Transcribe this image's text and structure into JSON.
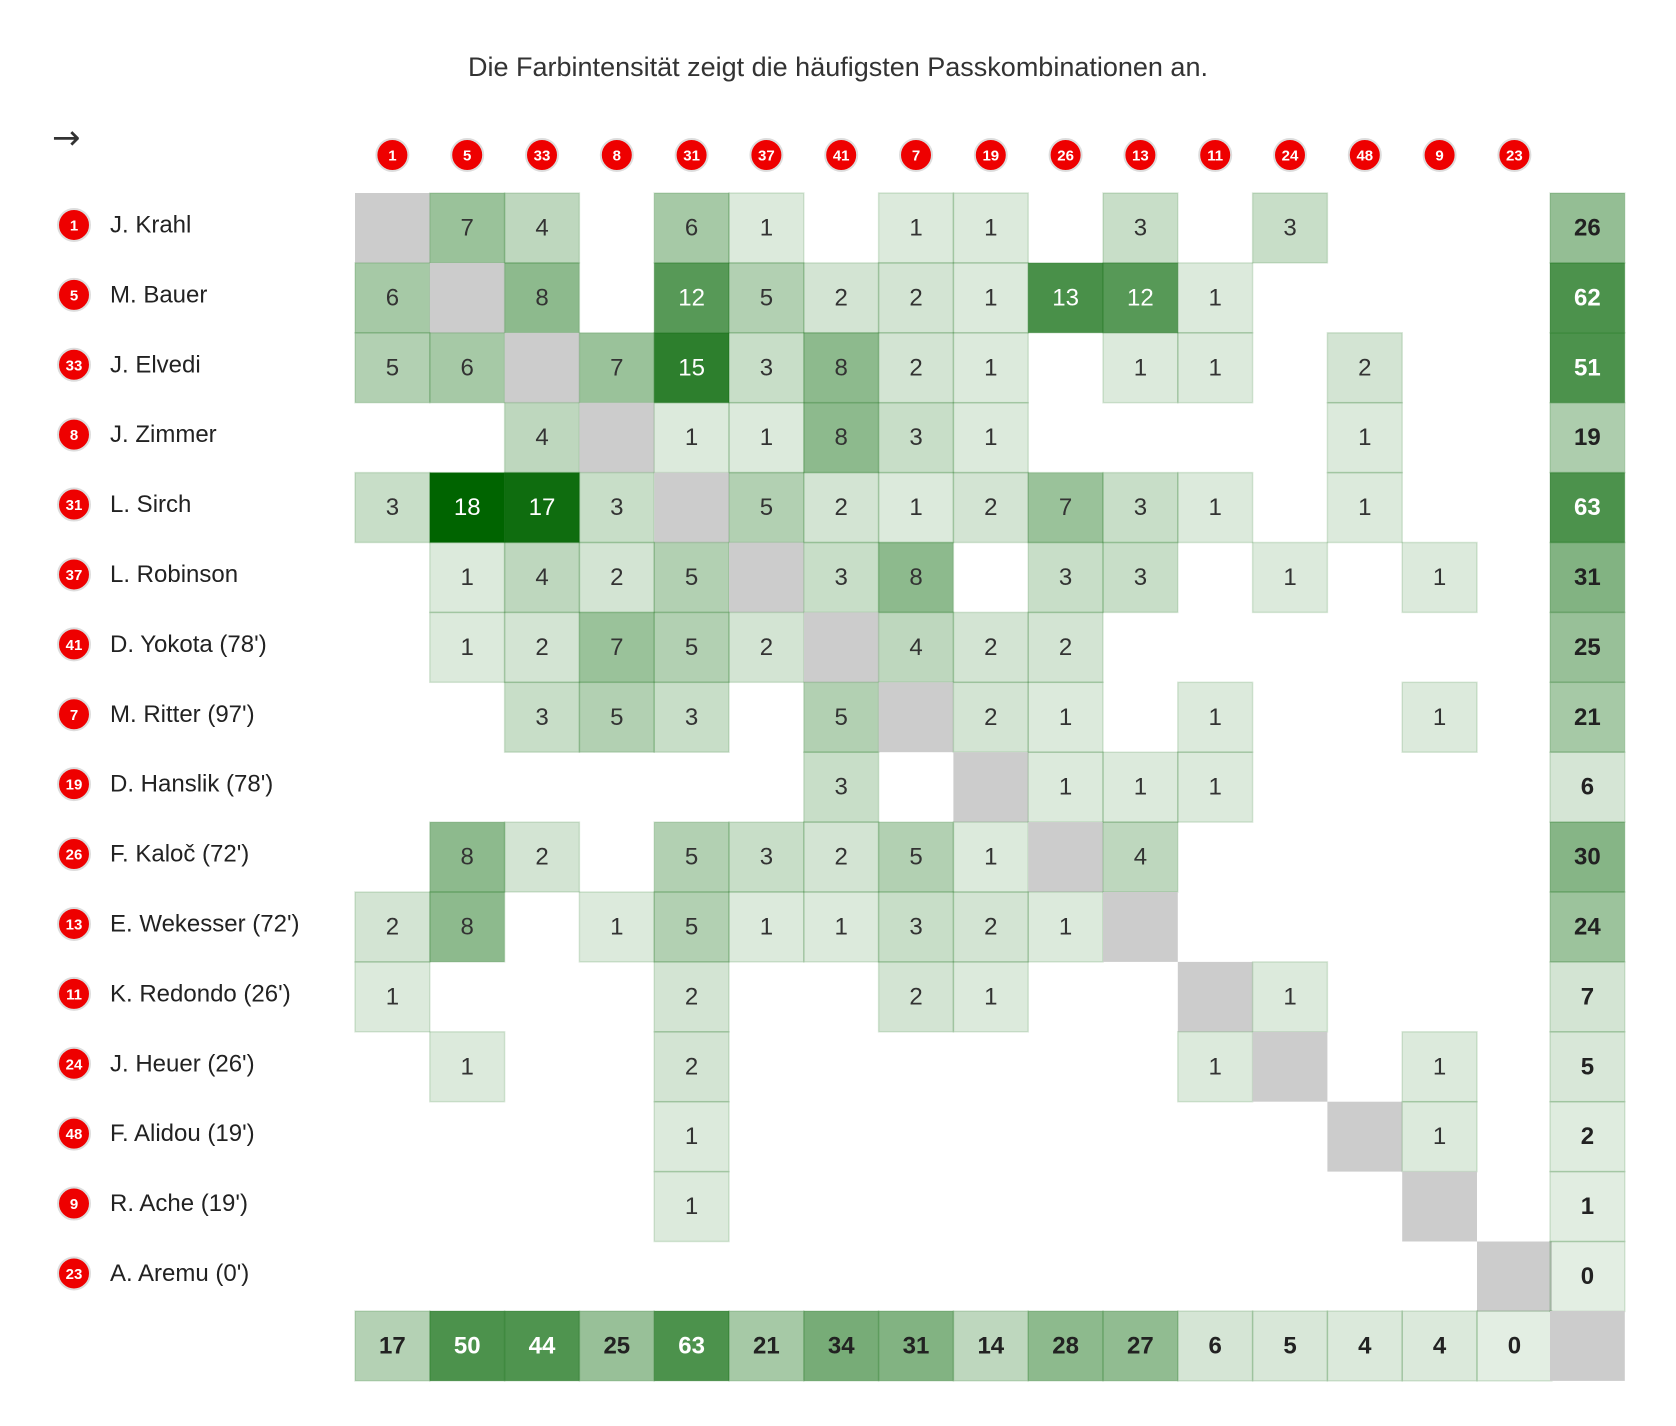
{
  "subtitle": "Die Farbintensität zeigt die häufigsten Passkombinationen an.",
  "direction_symbol": "→",
  "colors": {
    "base_green": "#006400",
    "diagonal": "#cccccc",
    "badge": "#ee0000",
    "badge_border": "#dddddd"
  },
  "chart_data": {
    "type": "heatmap",
    "title": "Die Farbintensität zeigt die häufigsten Passkombinationen an.",
    "col_numbers": [
      "1",
      "5",
      "33",
      "8",
      "31",
      "37",
      "41",
      "7",
      "19",
      "26",
      "13",
      "11",
      "24",
      "48",
      "9",
      "23"
    ],
    "rows": [
      {
        "number": "1",
        "name": "J. Krahl"
      },
      {
        "number": "5",
        "name": "M. Bauer"
      },
      {
        "number": "33",
        "name": "J. Elvedi"
      },
      {
        "number": "8",
        "name": "J. Zimmer"
      },
      {
        "number": "31",
        "name": "L. Sirch"
      },
      {
        "number": "37",
        "name": "L. Robinson"
      },
      {
        "number": "41",
        "name": "D. Yokota (78')"
      },
      {
        "number": "7",
        "name": "M. Ritter (97')"
      },
      {
        "number": "19",
        "name": "D. Hanslik (78')"
      },
      {
        "number": "26",
        "name": "F. Kaloč (72')"
      },
      {
        "number": "13",
        "name": "E. Wekesser (72')"
      },
      {
        "number": "11",
        "name": "K. Redondo (26')"
      },
      {
        "number": "24",
        "name": "J. Heuer (26')"
      },
      {
        "number": "48",
        "name": "F. Alidou (19')"
      },
      {
        "number": "9",
        "name": "R. Ache (19')"
      },
      {
        "number": "23",
        "name": "A. Aremu (0')"
      }
    ],
    "matrix": [
      [
        null,
        7,
        4,
        0,
        6,
        1,
        0,
        1,
        1,
        0,
        3,
        0,
        3,
        0,
        0,
        0
      ],
      [
        6,
        null,
        8,
        0,
        12,
        5,
        2,
        2,
        1,
        13,
        12,
        1,
        0,
        0,
        0,
        0
      ],
      [
        5,
        6,
        null,
        7,
        15,
        3,
        8,
        2,
        1,
        0,
        1,
        1,
        0,
        2,
        0,
        0
      ],
      [
        0,
        0,
        4,
        null,
        1,
        1,
        8,
        3,
        1,
        0,
        0,
        0,
        0,
        1,
        0,
        0
      ],
      [
        3,
        18,
        17,
        3,
        null,
        5,
        2,
        1,
        2,
        7,
        3,
        1,
        0,
        1,
        0,
        0
      ],
      [
        0,
        1,
        4,
        2,
        5,
        null,
        3,
        8,
        0,
        3,
        3,
        0,
        1,
        0,
        1,
        0
      ],
      [
        0,
        1,
        2,
        7,
        5,
        2,
        null,
        4,
        2,
        2,
        0,
        0,
        0,
        0,
        0,
        0
      ],
      [
        0,
        0,
        3,
        5,
        3,
        0,
        5,
        null,
        2,
        1,
        0,
        1,
        0,
        0,
        1,
        0
      ],
      [
        0,
        0,
        0,
        0,
        0,
        0,
        3,
        0,
        null,
        1,
        1,
        1,
        0,
        0,
        0,
        0
      ],
      [
        0,
        8,
        2,
        0,
        5,
        3,
        2,
        5,
        1,
        null,
        4,
        0,
        0,
        0,
        0,
        0
      ],
      [
        2,
        8,
        0,
        1,
        5,
        1,
        1,
        3,
        2,
        1,
        null,
        0,
        0,
        0,
        0,
        0
      ],
      [
        1,
        0,
        0,
        0,
        2,
        0,
        0,
        2,
        1,
        0,
        0,
        null,
        1,
        0,
        0,
        0
      ],
      [
        0,
        1,
        0,
        0,
        2,
        0,
        0,
        0,
        0,
        0,
        0,
        1,
        null,
        0,
        1,
        0
      ],
      [
        0,
        0,
        0,
        0,
        1,
        0,
        0,
        0,
        0,
        0,
        0,
        0,
        0,
        null,
        1,
        0
      ],
      [
        0,
        0,
        0,
        0,
        1,
        0,
        0,
        0,
        0,
        0,
        0,
        0,
        0,
        0,
        null,
        0
      ],
      [
        0,
        0,
        0,
        0,
        0,
        0,
        0,
        0,
        0,
        0,
        0,
        0,
        0,
        0,
        0,
        null
      ]
    ],
    "row_totals": [
      26,
      62,
      51,
      19,
      63,
      31,
      25,
      21,
      6,
      30,
      24,
      7,
      5,
      2,
      1,
      0
    ],
    "col_totals": [
      17,
      50,
      44,
      25,
      63,
      21,
      34,
      31,
      14,
      28,
      27,
      6,
      5,
      4,
      4,
      0
    ],
    "value_max": 18,
    "total_max": 63
  }
}
